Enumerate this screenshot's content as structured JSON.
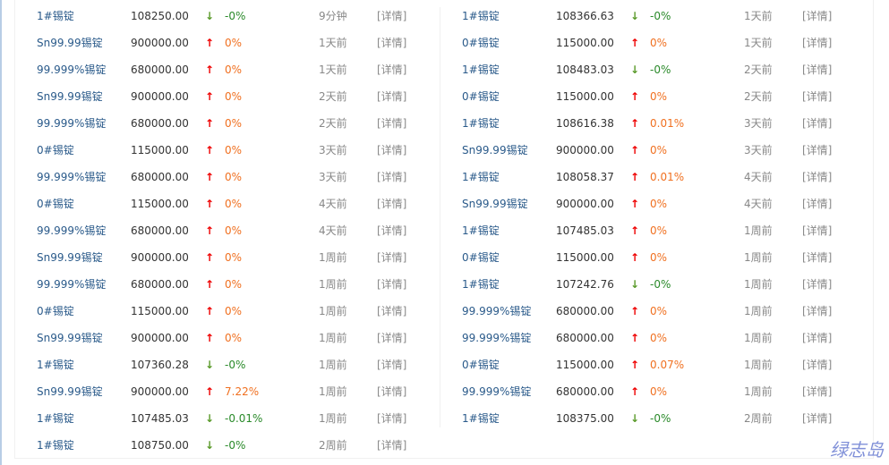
{
  "detail_label": "[详情]",
  "watermark": "绿志岛",
  "left": [
    {
      "name": "1#锡锭",
      "price": "108250.00",
      "dir": "down",
      "pct": "-0%",
      "time": "9分钟"
    },
    {
      "name": "Sn99.99锡锭",
      "price": "900000.00",
      "dir": "up",
      "pct": "0%",
      "time": "1天前"
    },
    {
      "name": "99.999%锡锭",
      "price": "680000.00",
      "dir": "up",
      "pct": "0%",
      "time": "1天前"
    },
    {
      "name": "Sn99.99锡锭",
      "price": "900000.00",
      "dir": "up",
      "pct": "0%",
      "time": "2天前"
    },
    {
      "name": "99.999%锡锭",
      "price": "680000.00",
      "dir": "up",
      "pct": "0%",
      "time": "2天前"
    },
    {
      "name": "0#锡锭",
      "price": "115000.00",
      "dir": "up",
      "pct": "0%",
      "time": "3天前"
    },
    {
      "name": "99.999%锡锭",
      "price": "680000.00",
      "dir": "up",
      "pct": "0%",
      "time": "3天前"
    },
    {
      "name": "0#锡锭",
      "price": "115000.00",
      "dir": "up",
      "pct": "0%",
      "time": "4天前"
    },
    {
      "name": "99.999%锡锭",
      "price": "680000.00",
      "dir": "up",
      "pct": "0%",
      "time": "4天前"
    },
    {
      "name": "Sn99.99锡锭",
      "price": "900000.00",
      "dir": "up",
      "pct": "0%",
      "time": "1周前"
    },
    {
      "name": "99.999%锡锭",
      "price": "680000.00",
      "dir": "up",
      "pct": "0%",
      "time": "1周前"
    },
    {
      "name": "0#锡锭",
      "price": "115000.00",
      "dir": "up",
      "pct": "0%",
      "time": "1周前"
    },
    {
      "name": "Sn99.99锡锭",
      "price": "900000.00",
      "dir": "up",
      "pct": "0%",
      "time": "1周前"
    },
    {
      "name": "1#锡锭",
      "price": "107360.28",
      "dir": "down",
      "pct": "-0%",
      "time": "1周前"
    },
    {
      "name": "Sn99.99锡锭",
      "price": "900000.00",
      "dir": "up",
      "pct": "7.22%",
      "time": "1周前"
    },
    {
      "name": "1#锡锭",
      "price": "107485.03",
      "dir": "down",
      "pct": "-0.01%",
      "time": "1周前"
    },
    {
      "name": "1#锡锭",
      "price": "108750.00",
      "dir": "down",
      "pct": "-0%",
      "time": "2周前"
    }
  ],
  "right": [
    {
      "name": "1#锡锭",
      "price": "108366.63",
      "dir": "down",
      "pct": "-0%",
      "time": "1天前"
    },
    {
      "name": "0#锡锭",
      "price": "115000.00",
      "dir": "up",
      "pct": "0%",
      "time": "1天前"
    },
    {
      "name": "1#锡锭",
      "price": "108483.03",
      "dir": "down",
      "pct": "-0%",
      "time": "2天前"
    },
    {
      "name": "0#锡锭",
      "price": "115000.00",
      "dir": "up",
      "pct": "0%",
      "time": "2天前"
    },
    {
      "name": "1#锡锭",
      "price": "108616.38",
      "dir": "up",
      "pct": "0.01%",
      "time": "3天前"
    },
    {
      "name": "Sn99.99锡锭",
      "price": "900000.00",
      "dir": "up",
      "pct": "0%",
      "time": "3天前"
    },
    {
      "name": "1#锡锭",
      "price": "108058.37",
      "dir": "up",
      "pct": "0.01%",
      "time": "4天前"
    },
    {
      "name": "Sn99.99锡锭",
      "price": "900000.00",
      "dir": "up",
      "pct": "0%",
      "time": "4天前"
    },
    {
      "name": "1#锡锭",
      "price": "107485.03",
      "dir": "up",
      "pct": "0%",
      "time": "1周前"
    },
    {
      "name": "0#锡锭",
      "price": "115000.00",
      "dir": "up",
      "pct": "0%",
      "time": "1周前"
    },
    {
      "name": "1#锡锭",
      "price": "107242.76",
      "dir": "down",
      "pct": "-0%",
      "time": "1周前"
    },
    {
      "name": "99.999%锡锭",
      "price": "680000.00",
      "dir": "up",
      "pct": "0%",
      "time": "1周前"
    },
    {
      "name": "99.999%锡锭",
      "price": "680000.00",
      "dir": "up",
      "pct": "0%",
      "time": "1周前"
    },
    {
      "name": "0#锡锭",
      "price": "115000.00",
      "dir": "up",
      "pct": "0.07%",
      "time": "1周前"
    },
    {
      "name": "99.999%锡锭",
      "price": "680000.00",
      "dir": "up",
      "pct": "0%",
      "time": "1周前"
    },
    {
      "name": "1#锡锭",
      "price": "108375.00",
      "dir": "down",
      "pct": "-0%",
      "time": "2周前"
    }
  ]
}
